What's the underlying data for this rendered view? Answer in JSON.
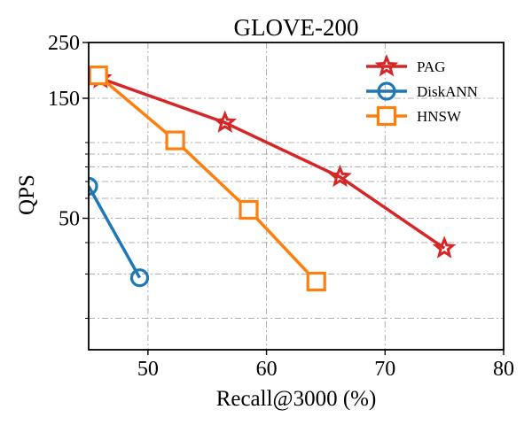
{
  "chart_data": {
    "type": "line",
    "title": "GLOVE-200",
    "xlabel": "Recall@3000 (%)",
    "ylabel": "QPS",
    "xlim": [
      45,
      80
    ],
    "ylim": [
      15,
      250
    ],
    "yscale": "log",
    "grid": true,
    "legend_position": "top-right",
    "x_ticks": [
      50,
      60,
      70,
      80
    ],
    "y_ticks": [
      50,
      150,
      250
    ],
    "y_minor_ticks": [
      20,
      30,
      40,
      60,
      70,
      80,
      90,
      100
    ],
    "series": [
      {
        "name": "PAG",
        "color": "#d62728",
        "marker": "star",
        "x": [
          46.0,
          56.5,
          66.2,
          75.0
        ],
        "y": [
          180,
          120,
          73,
          38
        ]
      },
      {
        "name": "DiskANN",
        "color": "#1f77b4",
        "marker": "circle",
        "x": [
          45.0,
          49.3
        ],
        "y": [
          67,
          29
        ]
      },
      {
        "name": "HNSW",
        "color": "#ff7f0e",
        "marker": "square",
        "x": [
          45.8,
          52.3,
          58.5,
          64.2
        ],
        "y": [
          185,
          102,
          54,
          28
        ]
      }
    ]
  }
}
